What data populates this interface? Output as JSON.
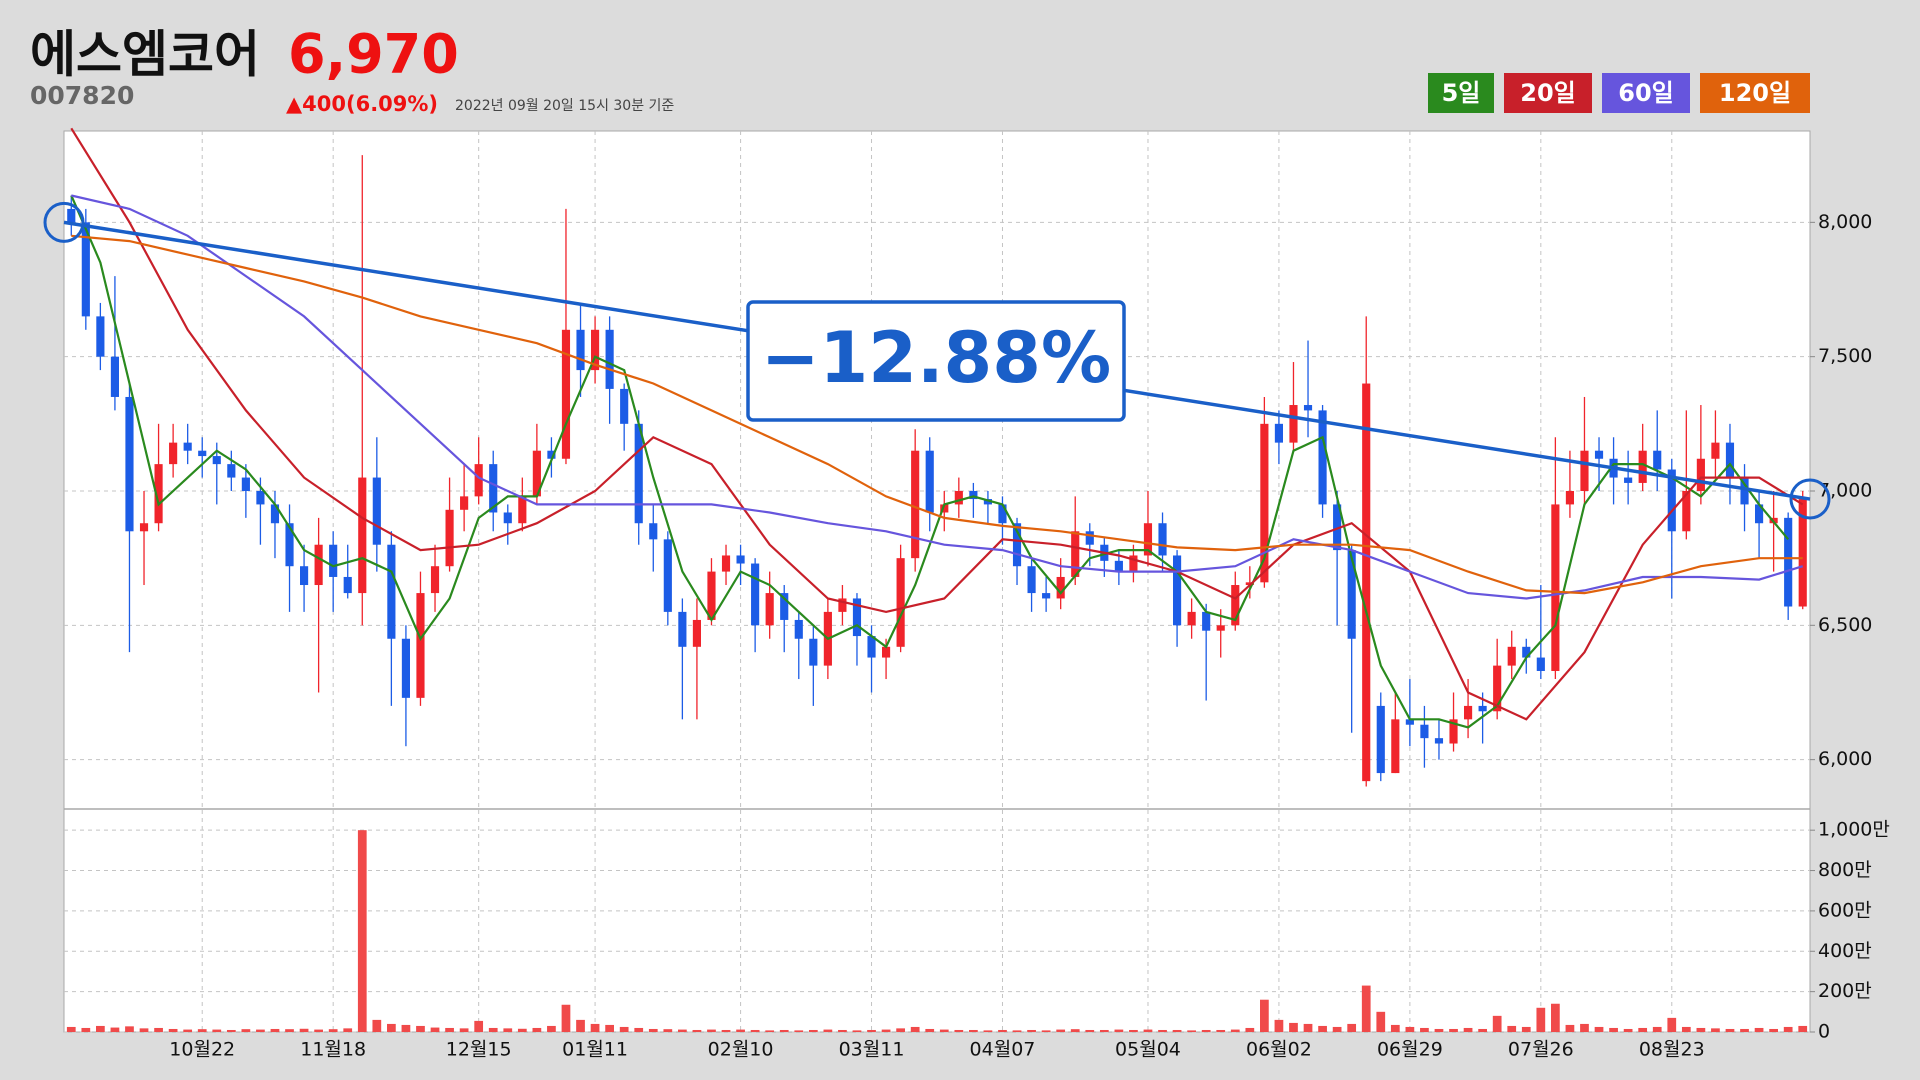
{
  "header": {
    "name": "에스엠코어",
    "code": "007820",
    "price": "6,970",
    "change": "▲400(6.09%)",
    "timestamp": "2022년 09월 20일 15시 30분 기준"
  },
  "chart_data": {
    "type": "candlestick",
    "xlim": [
      -0.5,
      119.5
    ],
    "xticks": [
      {
        "value": 9,
        "label": "10월22"
      },
      {
        "value": 18,
        "label": "11월18"
      },
      {
        "value": 28,
        "label": "12월15"
      },
      {
        "value": 36,
        "label": "01월11"
      },
      {
        "value": 46,
        "label": "02월10"
      },
      {
        "value": 55,
        "label": "03월11"
      },
      {
        "value": 64,
        "label": "04월07"
      },
      {
        "value": 74,
        "label": "05월04"
      },
      {
        "value": 83,
        "label": "06월02"
      },
      {
        "value": 92,
        "label": "06월29"
      },
      {
        "value": 101,
        "label": "07월26"
      },
      {
        "value": 110,
        "label": "08월23"
      }
    ],
    "ylim": [
      5820,
      8340
    ],
    "yticks": [
      {
        "value": 6000,
        "label": "6,000"
      },
      {
        "value": 6500,
        "label": "6,500"
      },
      {
        "value": 7000,
        "label": "7,000"
      },
      {
        "value": 7500,
        "label": "7,500"
      },
      {
        "value": 8000,
        "label": "8,000"
      }
    ],
    "grid": true,
    "up_color": "#f0242b",
    "down_color": "#1c5ce6",
    "open": [
      8050,
      8000,
      7650,
      7500,
      7350,
      6850,
      6880,
      7100,
      7180,
      7150,
      7130,
      7100,
      7050,
      7000,
      6950,
      6880,
      6720,
      6650,
      6800,
      6680,
      6620,
      7050,
      6800,
      6450,
      6230,
      6620,
      6720,
      6930,
      6980,
      7100,
      6920,
      6880,
      6980,
      7150,
      7120,
      7600,
      7450,
      7600,
      7380,
      7250,
      6880,
      6820,
      6550,
      6420,
      6520,
      6700,
      6760,
      6730,
      6500,
      6620,
      6520,
      6450,
      6350,
      6550,
      6600,
      6460,
      6380,
      6420,
      6750,
      7150,
      6920,
      6950,
      7000,
      6970,
      6950,
      6880,
      6720,
      6620,
      6600,
      6680,
      6850,
      6800,
      6740,
      6700,
      6760,
      6880,
      6760,
      6500,
      6550,
      6480,
      6500,
      6650,
      6660,
      7250,
      7180,
      7320,
      7300,
      6950,
      6780,
      5920,
      6200,
      5950,
      6150,
      6130,
      6080,
      6060,
      6150,
      6200,
      6180,
      6350,
      6420,
      6380,
      6330,
      6950,
      7000,
      7150,
      7120,
      7050,
      7030,
      7150,
      7080,
      6850,
      7000,
      7120,
      7180,
      7050,
      6950,
      6880,
      6900,
      6570
    ],
    "high": [
      8100,
      8050,
      7700,
      7800,
      7400,
      7000,
      7250,
      7250,
      7250,
      7200,
      7180,
      7150,
      7100,
      7050,
      7000,
      6950,
      6800,
      6900,
      6850,
      6800,
      8250,
      7200,
      6850,
      6500,
      6700,
      6800,
      7050,
      7100,
      7200,
      7150,
      6950,
      7050,
      7250,
      7200,
      8050,
      7700,
      7650,
      7650,
      7400,
      7300,
      6950,
      6850,
      6600,
      6600,
      6750,
      6800,
      6800,
      6750,
      6700,
      6650,
      6550,
      6500,
      6600,
      6650,
      6620,
      6500,
      6450,
      6800,
      7230,
      7200,
      7000,
      7050,
      7030,
      7000,
      6980,
      6900,
      6750,
      6680,
      6750,
      6980,
      6880,
      6830,
      6780,
      6800,
      7000,
      6920,
      6780,
      6600,
      6580,
      6560,
      6700,
      6720,
      7350,
      7300,
      7480,
      7560,
      7320,
      7000,
      6800,
      7650,
      6250,
      6250,
      6300,
      6200,
      6150,
      6250,
      6300,
      6250,
      6450,
      6480,
      6450,
      6650,
      7200,
      7150,
      7350,
      7200,
      7200,
      7150,
      7250,
      7300,
      7120,
      7300,
      7320,
      7300,
      7250,
      7100,
      7000,
      7000,
      6920,
      7000
    ],
    "low": [
      7950,
      7600,
      7450,
      7300,
      6400,
      6650,
      6850,
      7050,
      7100,
      7050,
      6950,
      7000,
      6900,
      6800,
      6750,
      6550,
      6550,
      6250,
      6550,
      6600,
      6500,
      6700,
      6200,
      6050,
      6200,
      6550,
      6700,
      6850,
      6950,
      6850,
      6800,
      6850,
      6950,
      7050,
      7100,
      7350,
      7400,
      7250,
      7150,
      6800,
      6700,
      6500,
      6150,
      6150,
      6500,
      6650,
      6650,
      6400,
      6450,
      6400,
      6300,
      6200,
      6300,
      6500,
      6350,
      6250,
      6300,
      6400,
      6700,
      6850,
      6850,
      6900,
      6900,
      6880,
      6800,
      6650,
      6550,
      6550,
      6560,
      6650,
      6720,
      6680,
      6650,
      6660,
      6720,
      6700,
      6420,
      6450,
      6220,
      6380,
      6480,
      6600,
      6640,
      7100,
      7150,
      7200,
      6900,
      6500,
      6100,
      5900,
      5920,
      5950,
      6050,
      5970,
      6000,
      6030,
      6080,
      6060,
      6150,
      6300,
      6320,
      6300,
      6300,
      6900,
      6950,
      7000,
      6950,
      6950,
      7000,
      7000,
      6600,
      6820,
      6950,
      7050,
      6950,
      6850,
      6750,
      6700,
      6520,
      6560
    ],
    "close": [
      8000,
      7650,
      7500,
      7350,
      6850,
      6880,
      7100,
      7180,
      7150,
      7130,
      7100,
      7050,
      7000,
      6950,
      6880,
      6720,
      6650,
      6800,
      6680,
      6620,
      7050,
      6800,
      6450,
      6230,
      6620,
      6720,
      6930,
      6980,
      7100,
      6920,
      6880,
      6980,
      7150,
      7120,
      7600,
      7450,
      7600,
      7380,
      7250,
      6880,
      6820,
      6550,
      6420,
      6520,
      6700,
      6760,
      6730,
      6500,
      6620,
      6520,
      6450,
      6350,
      6550,
      6600,
      6460,
      6380,
      6420,
      6750,
      7150,
      6920,
      6950,
      7000,
      6970,
      6950,
      6880,
      6720,
      6620,
      6600,
      6680,
      6850,
      6800,
      6740,
      6700,
      6760,
      6880,
      6760,
      6500,
      6550,
      6480,
      6500,
      6650,
      6660,
      7250,
      7180,
      7320,
      7300,
      6950,
      6780,
      6450,
      7400,
      5950,
      6150,
      6130,
      6080,
      6060,
      6150,
      6200,
      6180,
      6350,
      6420,
      6380,
      6330,
      6950,
      7000,
      7150,
      7120,
      7050,
      7030,
      7150,
      7080,
      6850,
      7000,
      7120,
      7180,
      7050,
      6950,
      6880,
      6900,
      6570,
      6970
    ],
    "series": [
      {
        "name": "5일",
        "color": "#2a8a1e",
        "x": [
          0,
          2,
          4,
          6,
          8,
          10,
          12,
          14,
          16,
          18,
          20,
          22,
          24,
          26,
          28,
          30,
          32,
          34,
          36,
          38,
          40,
          42,
          44,
          46,
          48,
          50,
          52,
          54,
          56,
          58,
          60,
          62,
          64,
          66,
          68,
          70,
          72,
          74,
          76,
          78,
          80,
          82,
          84,
          86,
          88,
          90,
          92,
          94,
          96,
          98,
          100,
          102,
          104,
          106,
          108,
          110,
          112,
          114,
          116,
          118
        ],
        "values": [
          8100,
          7850,
          7400,
          6950,
          7050,
          7150,
          7080,
          6950,
          6780,
          6720,
          6750,
          6700,
          6450,
          6600,
          6900,
          6980,
          6980,
          7250,
          7500,
          7450,
          7050,
          6700,
          6520,
          6700,
          6650,
          6550,
          6450,
          6500,
          6420,
          6650,
          6950,
          6980,
          6950,
          6750,
          6620,
          6750,
          6780,
          6780,
          6700,
          6550,
          6520,
          6750,
          7150,
          7200,
          6750,
          6350,
          6150,
          6150,
          6120,
          6200,
          6380,
          6500,
          6950,
          7100,
          7100,
          7050,
          6980,
          7100,
          6950,
          6820
        ]
      },
      {
        "name": "20일",
        "color": "#c8202a",
        "x": [
          0,
          4,
          8,
          12,
          16,
          20,
          24,
          28,
          32,
          36,
          40,
          44,
          48,
          52,
          56,
          60,
          64,
          68,
          72,
          76,
          80,
          84,
          88,
          92,
          96,
          100,
          104,
          108,
          112,
          116,
          119
        ],
        "values": [
          8350,
          8000,
          7600,
          7300,
          7050,
          6900,
          6780,
          6800,
          6880,
          7000,
          7200,
          7100,
          6800,
          6600,
          6550,
          6600,
          6820,
          6800,
          6760,
          6700,
          6600,
          6800,
          6880,
          6700,
          6250,
          6150,
          6400,
          6800,
          7050,
          7050,
          6950
        ]
      },
      {
        "name": "60일",
        "color": "#6655dd",
        "x": [
          0,
          4,
          8,
          12,
          16,
          20,
          24,
          28,
          32,
          36,
          40,
          44,
          48,
          52,
          56,
          60,
          64,
          68,
          72,
          76,
          80,
          84,
          88,
          92,
          96,
          100,
          104,
          108,
          112,
          116,
          119
        ],
        "values": [
          8100,
          8050,
          7950,
          7800,
          7650,
          7450,
          7250,
          7050,
          6950,
          6950,
          6950,
          6950,
          6920,
          6880,
          6850,
          6800,
          6780,
          6720,
          6700,
          6700,
          6720,
          6820,
          6780,
          6700,
          6620,
          6600,
          6630,
          6680,
          6680,
          6670,
          6720
        ]
      },
      {
        "name": "120일",
        "color": "#e0620c",
        "x": [
          0,
          4,
          8,
          12,
          16,
          20,
          24,
          28,
          32,
          36,
          40,
          44,
          48,
          52,
          56,
          60,
          64,
          68,
          72,
          76,
          80,
          84,
          88,
          92,
          96,
          100,
          104,
          108,
          112,
          116,
          119
        ],
        "values": [
          7950,
          7930,
          7880,
          7830,
          7780,
          7720,
          7650,
          7600,
          7550,
          7470,
          7400,
          7300,
          7200,
          7100,
          6980,
          6900,
          6870,
          6850,
          6820,
          6790,
          6780,
          6800,
          6800,
          6780,
          6700,
          6630,
          6620,
          6660,
          6720,
          6750,
          6750
        ]
      }
    ],
    "trend": {
      "x": [
        0,
        119
      ],
      "values": [
        8000,
        6970
      ],
      "label": "−12.88%",
      "color": "#1a5fc8"
    },
    "volume": {
      "color": "#f04a4a",
      "ylim": [
        0,
        1100
      ],
      "yticks": [
        0,
        {
          "value": 200,
          "label": "200만"
        },
        {
          "value": 400,
          "label": "400만"
        },
        {
          "value": 600,
          "label": "600만"
        },
        {
          "value": 800,
          "label": "800만"
        },
        {
          "value": 1000,
          "label": "1,000만"
        }
      ],
      "values": [
        25,
        20,
        30,
        22,
        28,
        18,
        20,
        15,
        12,
        14,
        12,
        10,
        14,
        12,
        15,
        14,
        16,
        12,
        14,
        18,
        1000,
        60,
        40,
        35,
        30,
        22,
        20,
        18,
        55,
        20,
        18,
        16,
        20,
        30,
        135,
        60,
        40,
        35,
        25,
        20,
        15,
        14,
        12,
        10,
        12,
        10,
        12,
        10,
        8,
        10,
        8,
        10,
        12,
        10,
        8,
        10,
        12,
        18,
        25,
        15,
        12,
        10,
        10,
        8,
        10,
        8,
        10,
        8,
        12,
        14,
        10,
        10,
        12,
        10,
        12,
        10,
        10,
        8,
        10,
        10,
        12,
        20,
        160,
        60,
        45,
        40,
        30,
        25,
        40,
        230,
        100,
        35,
        25,
        20,
        15,
        15,
        20,
        15,
        80,
        30,
        25,
        120,
        140,
        35,
        40,
        25,
        20,
        15,
        20,
        25,
        70,
        25,
        20,
        18,
        15,
        15,
        20,
        15,
        25,
        30
      ]
    }
  }
}
